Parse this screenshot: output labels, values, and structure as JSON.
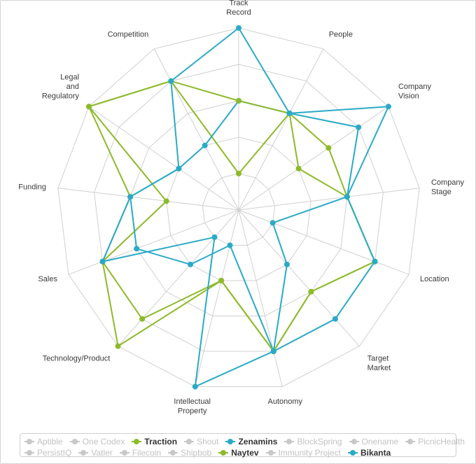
{
  "chart_data": {
    "type": "radar",
    "axes": [
      "Track Record",
      "People",
      "Company Vision",
      "Company Stage",
      "Location",
      "Target Market",
      "Autonomy",
      "Intellectual Property",
      "Technology/Product",
      "Sales",
      "Funding",
      "Legal and Regulatory",
      "Competition"
    ],
    "axis_label_lines": [
      [
        "Track",
        "Record"
      ],
      [
        "People"
      ],
      [
        "Company",
        "Vision"
      ],
      [
        "Company",
        "Stage"
      ],
      [
        "Location"
      ],
      [
        "Target",
        "Market"
      ],
      [
        "Autonomy"
      ],
      [
        "Intellectual",
        "Property"
      ],
      [
        "Technology/Product"
      ],
      [
        "Sales"
      ],
      [
        "Funding"
      ],
      [
        "Legal",
        "and",
        "Regulatory"
      ],
      [
        "Competition"
      ]
    ],
    "range": [
      0,
      5
    ],
    "grid": "polygon",
    "gridlines": 5,
    "legend_position": "bottom",
    "series": [
      {
        "name": "Aptible",
        "visible": false
      },
      {
        "name": "One Codex",
        "visible": false
      },
      {
        "name": "Traction",
        "visible": true,
        "color": "#8dba2a",
        "values": [
          1,
          3,
          3,
          3,
          4,
          3,
          4,
          2,
          4,
          4,
          2,
          5,
          4
        ]
      },
      {
        "name": "Shout",
        "visible": false
      },
      {
        "name": "Zenamins",
        "visible": true,
        "color": "#2aaac6",
        "values": [
          3,
          3,
          4,
          3,
          1,
          2,
          4,
          1,
          2,
          3,
          3,
          2,
          2
        ]
      },
      {
        "name": "BlockSpring",
        "visible": false
      },
      {
        "name": "Onename",
        "visible": false
      },
      {
        "name": "PicnicHealth",
        "visible": false
      },
      {
        "name": "PersistIQ",
        "visible": false
      },
      {
        "name": "Vatler",
        "visible": false
      },
      {
        "name": "Filecoin",
        "visible": false
      },
      {
        "name": "Shipbob",
        "visible": false
      },
      {
        "name": "Naytev",
        "visible": true,
        "color": "#8dba2a",
        "values": [
          3,
          3,
          2,
          3,
          4,
          3,
          4,
          2,
          5,
          4,
          3,
          5,
          4
        ]
      },
      {
        "name": "Immunity Project",
        "visible": false
      },
      {
        "name": "Bikanta",
        "visible": true,
        "color": "#2aaac6",
        "values": [
          5,
          3,
          5,
          3,
          4,
          4,
          4,
          5,
          1,
          4,
          3,
          2,
          4
        ]
      }
    ]
  },
  "legend": {
    "rows": [
      [
        "Aptible",
        "One Codex",
        "Traction",
        "Shout",
        "Zenamins",
        "BlockSpring",
        "Onename",
        "PicnicHealth"
      ],
      [
        "PersistIQ",
        "Vatler",
        "Filecoin",
        "Shipbob",
        "Naytev",
        "Immunity Project",
        "Bikanta"
      ]
    ]
  },
  "colors": {
    "grid": "#d0d0d0",
    "inactive": "#c8c8c8",
    "green": "#8dba2a",
    "blue": "#2aaac6"
  }
}
